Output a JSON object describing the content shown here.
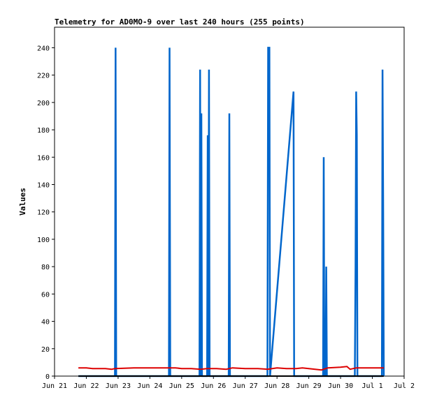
{
  "chart_data": {
    "type": "line",
    "title": "Telemetry for AD0MO-9 over last 240 hours (255 points)",
    "xlabel": "",
    "ylabel": "Values",
    "ylim": [
      0,
      255
    ],
    "yticks": [
      0,
      20,
      40,
      60,
      80,
      100,
      120,
      140,
      160,
      180,
      200,
      220,
      240
    ],
    "xticks": [
      {
        "label": "Jun 21",
        "day": 0
      },
      {
        "label": "Jun 22",
        "day": 1
      },
      {
        "label": "Jun 23",
        "day": 2
      },
      {
        "label": "Jun 24",
        "day": 3
      },
      {
        "label": "Jun 25",
        "day": 4
      },
      {
        "label": "Jun 26",
        "day": 5
      },
      {
        "label": "Jun 27",
        "day": 6
      },
      {
        "label": "Jun 28",
        "day": 7
      },
      {
        "label": "Jun 29",
        "day": 8
      },
      {
        "label": "Jun 30",
        "day": 9
      },
      {
        "label": "Jul 1",
        "day": 10
      },
      {
        "label": "Jul 2",
        "day": 11
      }
    ],
    "xlim": [
      0,
      11
    ],
    "grid": false,
    "series": [
      {
        "color": "#0066cc",
        "style": "spikes",
        "points": [
          [
            0.75,
            0
          ],
          [
            1.9,
            0
          ],
          [
            1.92,
            240
          ],
          [
            1.94,
            0
          ],
          [
            3.6,
            0
          ],
          [
            3.62,
            240
          ],
          [
            3.64,
            0
          ],
          [
            4.56,
            0
          ],
          [
            4.58,
            224
          ],
          [
            4.6,
            0
          ],
          [
            4.62,
            192
          ],
          [
            4.64,
            0
          ],
          [
            4.8,
            0
          ],
          [
            4.82,
            176
          ],
          [
            4.84,
            0
          ],
          [
            4.86,
            224
          ],
          [
            4.88,
            0
          ],
          [
            5.48,
            0
          ],
          [
            5.5,
            192
          ],
          [
            5.52,
            0
          ],
          [
            6.7,
            0
          ],
          [
            6.72,
            240
          ],
          [
            6.76,
            240
          ],
          [
            6.78,
            0
          ],
          [
            7.52,
            208
          ],
          [
            7.54,
            0
          ],
          [
            8.45,
            0
          ],
          [
            8.47,
            160
          ],
          [
            8.49,
            0
          ],
          [
            8.53,
            0
          ],
          [
            8.55,
            80
          ],
          [
            8.57,
            0
          ],
          [
            9.45,
            0
          ],
          [
            9.47,
            80
          ],
          [
            9.49,
            208
          ],
          [
            9.51,
            176
          ],
          [
            9.53,
            0
          ],
          [
            10.3,
            0
          ],
          [
            10.32,
            224
          ],
          [
            10.34,
            128
          ],
          [
            10.36,
            0
          ]
        ]
      },
      {
        "color": "#dd0000",
        "style": "line",
        "points": [
          [
            0.75,
            6
          ],
          [
            1.0,
            6
          ],
          [
            1.2,
            5.5
          ],
          [
            1.6,
            5.5
          ],
          [
            1.8,
            5
          ],
          [
            1.9,
            5.5
          ],
          [
            2.5,
            6
          ],
          [
            3.0,
            6
          ],
          [
            3.6,
            6
          ],
          [
            3.8,
            6
          ],
          [
            4.0,
            5.5
          ],
          [
            4.3,
            5.5
          ],
          [
            4.6,
            5
          ],
          [
            4.8,
            5.5
          ],
          [
            5.1,
            5.5
          ],
          [
            5.4,
            5
          ],
          [
            5.6,
            6
          ],
          [
            6.0,
            5.5
          ],
          [
            6.4,
            5.5
          ],
          [
            6.7,
            5
          ],
          [
            7.0,
            6
          ],
          [
            7.3,
            5.5
          ],
          [
            7.6,
            5.5
          ],
          [
            7.8,
            6
          ],
          [
            8.0,
            5.5
          ],
          [
            8.2,
            5
          ],
          [
            8.4,
            4.5
          ],
          [
            8.6,
            6
          ],
          [
            9.0,
            6.5
          ],
          [
            9.2,
            7
          ],
          [
            9.3,
            5
          ],
          [
            9.5,
            6
          ],
          [
            10.0,
            6
          ],
          [
            10.36,
            6
          ]
        ]
      },
      {
        "color": "#000000",
        "style": "line",
        "points": [
          [
            0.75,
            0
          ],
          [
            10.36,
            0
          ]
        ]
      }
    ]
  }
}
